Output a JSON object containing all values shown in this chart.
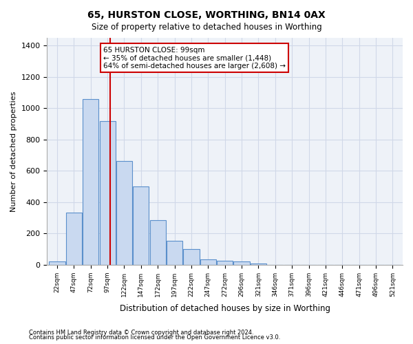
{
  "title": "65, HURSTON CLOSE, WORTHING, BN14 0AX",
  "subtitle": "Size of property relative to detached houses in Worthing",
  "xlabel": "Distribution of detached houses by size in Worthing",
  "ylabel": "Number of detached properties",
  "bar_values": [
    20,
    335,
    1060,
    920,
    665,
    500,
    285,
    155,
    100,
    35,
    25,
    20,
    10,
    0,
    0,
    0,
    0,
    0,
    0,
    0,
    0
  ],
  "bar_labels": [
    "22sqm",
    "47sqm",
    "72sqm",
    "97sqm",
    "122sqm",
    "147sqm",
    "172sqm",
    "197sqm",
    "222sqm",
    "247sqm",
    "272sqm",
    "296sqm",
    "321sqm",
    "346sqm",
    "371sqm",
    "396sqm",
    "421sqm",
    "446sqm",
    "471sqm",
    "496sqm",
    "521sqm"
  ],
  "bar_color": "#c9d9f0",
  "bar_edge_color": "#5a8fcb",
  "property_label": "65 HURSTON CLOSE: 99sqm",
  "annotation_line1": "← 35% of detached houses are smaller (1,448)",
  "annotation_line2": "64% of semi-detached houses are larger (2,608) →",
  "vline_color": "#cc0000",
  "vline_x_index": 3.16,
  "annotation_box_color": "#ffffff",
  "annotation_box_edge": "#cc0000",
  "grid_color": "#d0d8e8",
  "background_color": "#eef2f8",
  "ylim": [
    0,
    1450
  ],
  "yticks": [
    0,
    200,
    400,
    600,
    800,
    1000,
    1200,
    1400
  ],
  "footer_line1": "Contains HM Land Registry data © Crown copyright and database right 2024.",
  "footer_line2": "Contains public sector information licensed under the Open Government Licence v3.0."
}
